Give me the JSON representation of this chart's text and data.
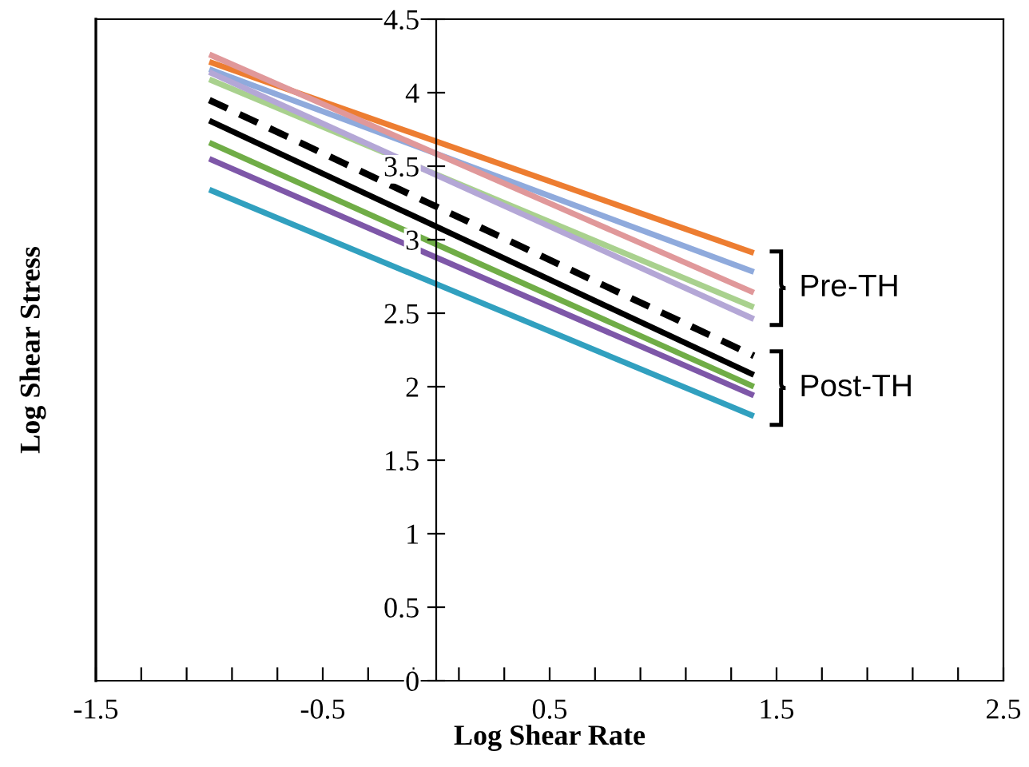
{
  "chart_data": {
    "type": "line",
    "xlabel": "Log Shear Rate",
    "ylabel": "Log Shear Stress",
    "x": [
      -1.0,
      1.4
    ],
    "series": [
      {
        "color": "#ed7d31",
        "values": [
          4.21,
          2.91
        ]
      },
      {
        "color": "#8faadc",
        "values": [
          4.16,
          2.78
        ]
      },
      {
        "color": "#e0989a",
        "values": [
          4.26,
          2.64
        ]
      },
      {
        "color": "#a9d18e",
        "values": [
          4.09,
          2.54
        ]
      },
      {
        "color": "#b4a7d6",
        "values": [
          4.14,
          2.46
        ]
      },
      {
        "color": "#000000",
        "values": [
          3.95,
          2.21
        ],
        "line_style": "dashed"
      },
      {
        "color": "#000000",
        "values": [
          3.81,
          2.08
        ]
      },
      {
        "color": "#70ad47",
        "values": [
          3.66,
          2.0
        ]
      },
      {
        "color": "#7e57a8",
        "values": [
          3.55,
          1.94
        ]
      },
      {
        "color": "#31a0bf",
        "values": [
          3.34,
          1.8
        ]
      }
    ],
    "xlim": [
      -1.5,
      2.5
    ],
    "ylim": [
      0,
      4.5
    ],
    "xticks": [
      -1.5,
      {
        "value": -1.3,
        "label": null
      },
      {
        "value": -1.1,
        "label": null
      },
      {
        "value": -0.9,
        "label": null
      },
      {
        "value": -0.7,
        "label": null
      },
      -0.5,
      {
        "value": -0.3,
        "label": null
      },
      {
        "value": -0.1,
        "label": null
      },
      {
        "value": 0.1,
        "label": null
      },
      {
        "value": 0.3,
        "label": null
      },
      0.5,
      {
        "value": 0.7,
        "label": null
      },
      {
        "value": 0.9,
        "label": null
      },
      {
        "value": 1.1,
        "label": null
      },
      {
        "value": 1.3,
        "label": null
      },
      1.5,
      {
        "value": 1.7,
        "label": null
      },
      {
        "value": 1.9,
        "label": null
      },
      {
        "value": 2.1,
        "label": null
      },
      {
        "value": 2.3,
        "label": null
      },
      2.5
    ],
    "yticks": [
      0,
      0.5,
      1,
      1.5,
      2,
      2.5,
      3,
      3.5,
      4,
      4.5
    ],
    "annotations": [
      "Pre-TH",
      "Post-TH"
    ],
    "grid": false,
    "legend": false,
    "line_style": "solid",
    "marker": "none"
  }
}
